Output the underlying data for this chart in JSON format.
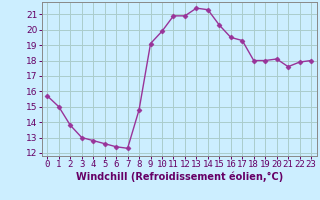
{
  "x": [
    0,
    1,
    2,
    3,
    4,
    5,
    6,
    7,
    8,
    9,
    10,
    11,
    12,
    13,
    14,
    15,
    16,
    17,
    18,
    19,
    20,
    21,
    22,
    23
  ],
  "y": [
    15.7,
    15.0,
    13.8,
    13.0,
    12.8,
    12.6,
    12.4,
    12.3,
    14.8,
    19.1,
    19.9,
    20.9,
    20.9,
    21.4,
    21.3,
    20.3,
    19.5,
    19.3,
    18.0,
    18.0,
    18.1,
    17.6,
    17.9,
    18.0
  ],
  "line_color": "#993399",
  "marker": "D",
  "markersize": 2.5,
  "linewidth": 1.0,
  "bg_color": "#cceeff",
  "grid_color": "#aacccc",
  "xlabel": "Windchill (Refroidissement éolien,°C)",
  "xlabel_fontsize": 7,
  "ylabel_ticks": [
    12,
    13,
    14,
    15,
    16,
    17,
    18,
    19,
    20,
    21
  ],
  "xlim": [
    -0.5,
    23.5
  ],
  "ylim": [
    11.8,
    21.8
  ],
  "xtick_labels": [
    "0",
    "1",
    "2",
    "3",
    "4",
    "5",
    "6",
    "7",
    "8",
    "9",
    "10",
    "11",
    "12",
    "13",
    "14",
    "15",
    "16",
    "17",
    "18",
    "19",
    "20",
    "21",
    "22",
    "23"
  ],
  "tick_fontsize": 6.5,
  "xlabel_color": "#660066",
  "tick_color": "#660066",
  "spine_color": "#888888"
}
